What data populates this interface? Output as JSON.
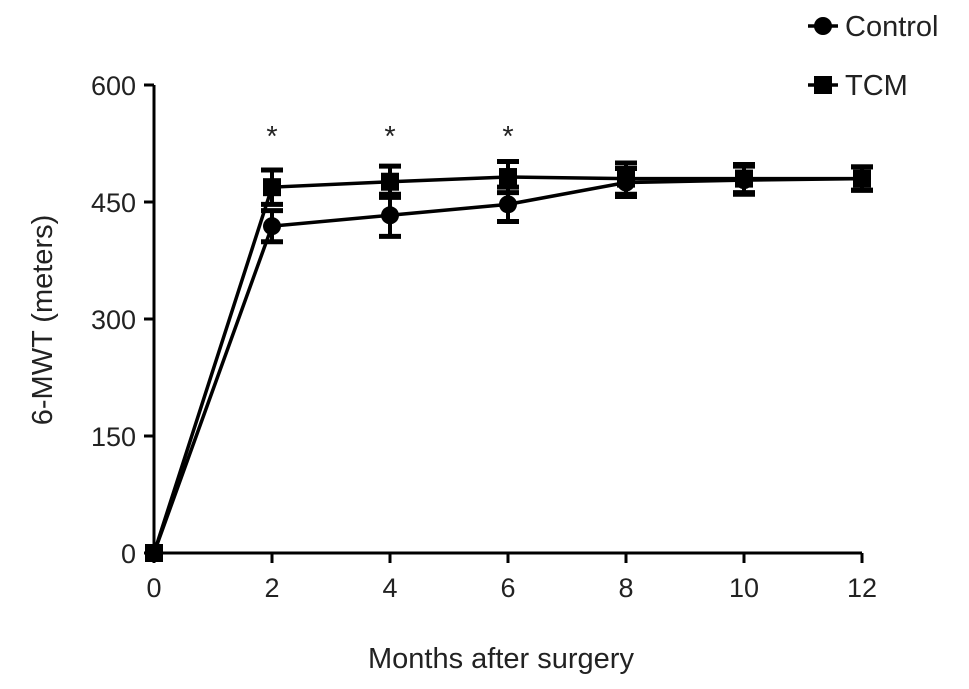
{
  "chart_data": {
    "type": "line",
    "title": "",
    "xlabel": "Months after surgery",
    "ylabel": "6-MWT (meters)",
    "xlim": [
      0,
      12
    ],
    "ylim": [
      0,
      600
    ],
    "x_ticks": [
      "0",
      "2",
      "4",
      "6",
      "8",
      "10",
      "12"
    ],
    "y_ticks": [
      "0",
      "150",
      "300",
      "450",
      "600"
    ],
    "x": [
      0,
      2,
      4,
      6,
      8,
      10,
      12
    ],
    "series": [
      {
        "name": "Control",
        "marker": "circle",
        "values": [
          0,
          419,
          433,
          447,
          475,
          478,
          480
        ],
        "errors": [
          0,
          20,
          27,
          22,
          18,
          18,
          15
        ]
      },
      {
        "name": "TCM",
        "marker": "square",
        "values": [
          0,
          469,
          476,
          482,
          480,
          480,
          480
        ],
        "errors": [
          0,
          22,
          20,
          20,
          20,
          18,
          15
        ]
      }
    ],
    "annotations": [
      {
        "x": 2,
        "text": "*"
      },
      {
        "x": 4,
        "text": "*"
      },
      {
        "x": 6,
        "text": "*"
      }
    ],
    "legend": "top-right",
    "grid": false
  }
}
